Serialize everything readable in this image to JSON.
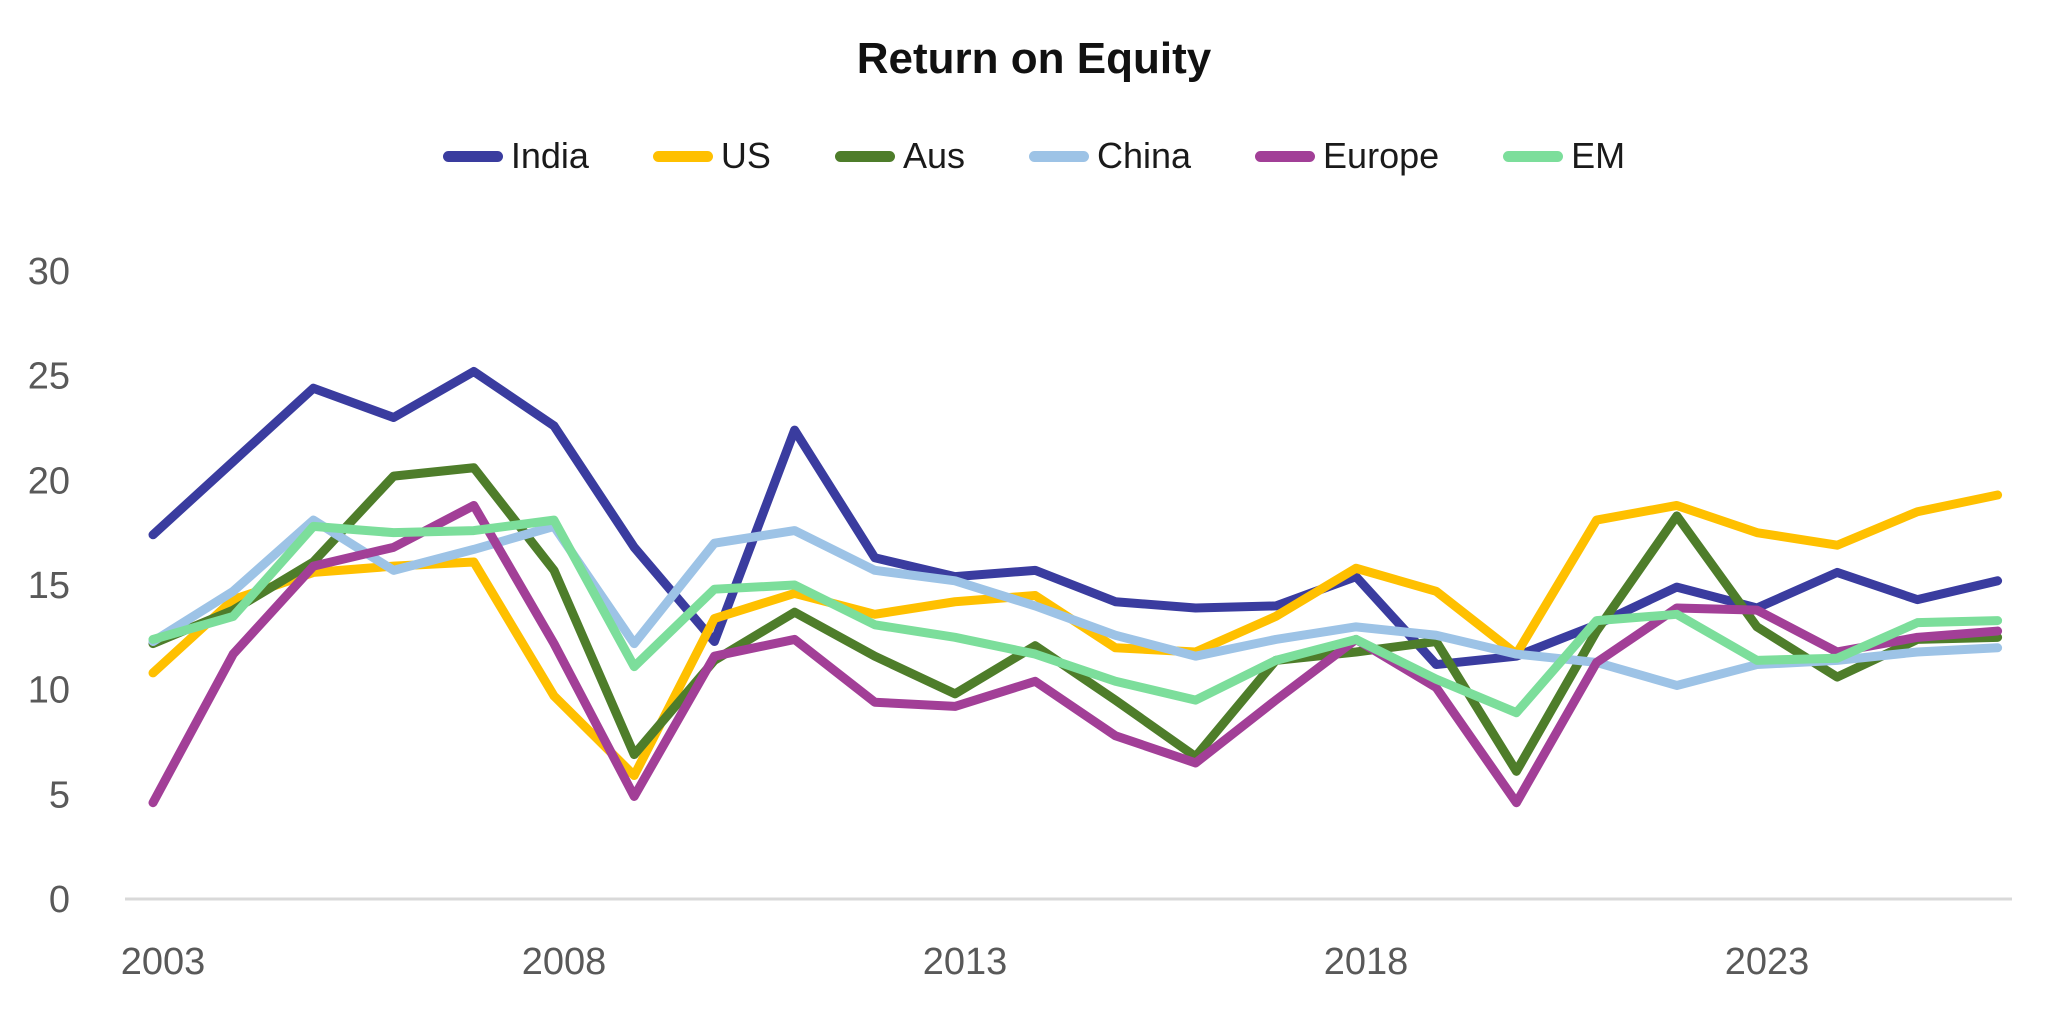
{
  "title": "Return on Equity",
  "chart_data": {
    "type": "line",
    "title": "Return on Equity",
    "xlabel": "",
    "ylabel": "",
    "grid": false,
    "legend_position": "top",
    "background_color": "#ffffff",
    "axis_line_color": "#d9d9d9",
    "tick_label_color": "#595959",
    "line_width": 9,
    "xlim": [
      2003,
      2026
    ],
    "ylim": [
      0,
      30
    ],
    "y_ticks": [
      0,
      5,
      10,
      15,
      20,
      25,
      30
    ],
    "x_tick_years": [
      2003,
      2008,
      2013,
      2018,
      2023
    ],
    "x": [
      2003,
      2004,
      2005,
      2006,
      2007,
      2008,
      2009,
      2010,
      2011,
      2012,
      2013,
      2014,
      2015,
      2016,
      2017,
      2018,
      2019,
      2020,
      2021,
      2022,
      2023,
      2024,
      2025,
      2026
    ],
    "series": [
      {
        "name": "India",
        "color": "#3A3C9F",
        "values": [
          17.4,
          20.9,
          24.4,
          23.0,
          25.2,
          22.6,
          16.8,
          12.3,
          22.4,
          16.3,
          15.4,
          15.7,
          14.2,
          13.9,
          14.0,
          15.4,
          11.2,
          11.6,
          13.1,
          14.9,
          13.9,
          15.6,
          14.3,
          15.2
        ]
      },
      {
        "name": "US",
        "color": "#FFC000",
        "values": [
          10.8,
          14.3,
          15.6,
          15.9,
          16.1,
          9.7,
          5.9,
          13.4,
          14.6,
          13.6,
          14.2,
          14.5,
          12.0,
          11.8,
          13.5,
          15.8,
          14.7,
          11.7,
          18.1,
          18.8,
          17.5,
          16.9,
          18.5,
          19.3
        ]
      },
      {
        "name": "Aus",
        "color": "#4E7D2A",
        "values": [
          12.2,
          13.8,
          16.1,
          20.2,
          20.6,
          15.7,
          6.9,
          11.4,
          13.7,
          11.6,
          9.8,
          12.1,
          9.5,
          6.8,
          11.4,
          11.8,
          12.3,
          6.1,
          12.8,
          18.3,
          13.0,
          10.6,
          12.4,
          12.5
        ]
      },
      {
        "name": "China",
        "color": "#9DC3E6",
        "values": [
          12.3,
          14.7,
          18.1,
          15.7,
          16.7,
          17.8,
          12.2,
          17.0,
          17.6,
          15.7,
          15.2,
          14.0,
          12.6,
          11.6,
          12.4,
          13.0,
          12.6,
          11.7,
          11.3,
          10.2,
          11.2,
          11.4,
          11.8,
          12.0
        ]
      },
      {
        "name": "Europe",
        "color": "#A23F97",
        "values": [
          4.6,
          11.7,
          15.9,
          16.8,
          18.8,
          12.2,
          4.9,
          11.6,
          12.4,
          9.4,
          9.2,
          10.4,
          7.8,
          6.5,
          9.5,
          12.4,
          10.1,
          4.6,
          11.3,
          13.9,
          13.8,
          11.8,
          12.5,
          12.8
        ]
      },
      {
        "name": "EM",
        "color": "#7CDE9B",
        "values": [
          12.4,
          13.5,
          17.8,
          17.5,
          17.6,
          18.1,
          11.1,
          14.8,
          15.0,
          13.1,
          12.5,
          11.7,
          10.4,
          9.5,
          11.4,
          12.4,
          10.5,
          8.9,
          13.3,
          13.6,
          11.4,
          11.5,
          13.2,
          13.3
        ]
      }
    ]
  }
}
